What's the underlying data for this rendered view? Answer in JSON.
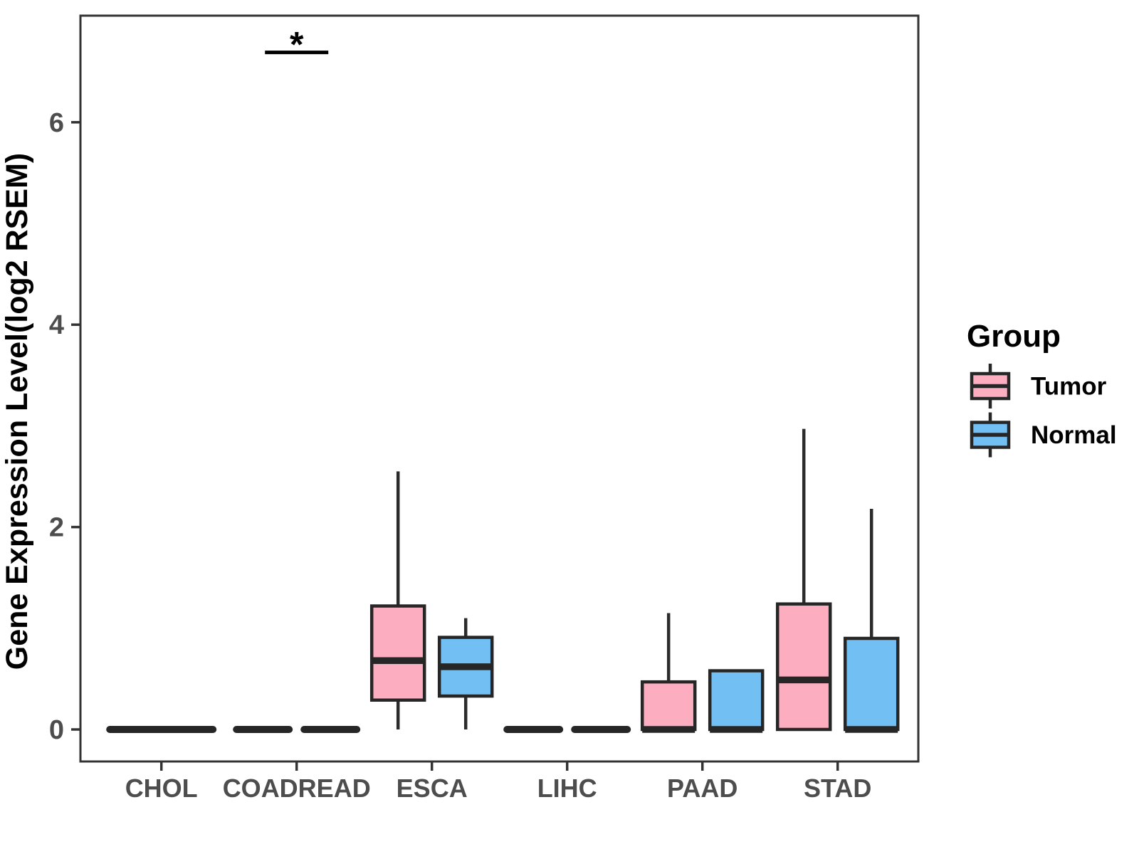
{
  "figure": {
    "background": "#FFFFFF"
  },
  "chart_data": {
    "type": "grouped_boxplot",
    "title": "",
    "xlabel": "",
    "ylabel": "Gene Expression Level(log2 RSEM)",
    "yticks": [
      0,
      2,
      4,
      6
    ],
    "ylim": [
      -0.32,
      7.05
    ],
    "grid": false,
    "categories": [
      "CHOL",
      "COADREAD",
      "ESCA",
      "LIHC",
      "PAAD",
      "STAD"
    ],
    "legend": {
      "title": "Group",
      "position": "right",
      "entries": [
        {
          "label": "Tumor",
          "color": "#FCADC0"
        },
        {
          "label": "Normal",
          "color": "#72BFF4"
        }
      ]
    },
    "series": [
      {
        "name": "Tumor",
        "color": "#FCADC0",
        "boxes": [
          {
            "category": "CHOL",
            "min": 0,
            "q1": 0,
            "median": 0,
            "q3": 0,
            "max": 0,
            "full_width": true
          },
          {
            "category": "COADREAD",
            "min": 0,
            "q1": 0,
            "median": 0,
            "q3": 0,
            "max": 0
          },
          {
            "category": "ESCA",
            "min": 0,
            "q1": 0.29,
            "median": 0.68,
            "q3": 1.22,
            "max": 2.55
          },
          {
            "category": "LIHC",
            "min": 0,
            "q1": 0,
            "median": 0,
            "q3": 0,
            "max": 0
          },
          {
            "category": "PAAD",
            "min": 0,
            "q1": 0,
            "median": 0,
            "q3": 0.47,
            "max": 1.15
          },
          {
            "category": "STAD",
            "min": 0,
            "q1": 0,
            "median": 0.49,
            "q3": 1.24,
            "max": 2.97
          }
        ]
      },
      {
        "name": "Normal",
        "color": "#72BFF4",
        "boxes": [
          {
            "category": "CHOL",
            "absent": true
          },
          {
            "category": "COADREAD",
            "min": 0,
            "q1": 0,
            "median": 0,
            "q3": 0,
            "max": 0
          },
          {
            "category": "ESCA",
            "min": 0,
            "q1": 0.33,
            "median": 0.62,
            "q3": 0.91,
            "max": 1.1
          },
          {
            "category": "LIHC",
            "min": 0,
            "q1": 0,
            "median": 0,
            "q3": 0,
            "max": 0
          },
          {
            "category": "PAAD",
            "min": 0,
            "q1": 0,
            "median": 0,
            "q3": 0.58,
            "max": 0.58
          },
          {
            "category": "STAD",
            "min": 0,
            "q1": 0,
            "median": 0,
            "q3": 0.9,
            "max": 2.18
          }
        ]
      }
    ],
    "annotations": [
      {
        "type": "significance",
        "category": "COADREAD",
        "label": "*",
        "y_value": 6.69
      }
    ],
    "styles": {
      "box_border_color": "#262626",
      "median_color": "#262626",
      "whisker_color": "#2B2B2B",
      "axis_color": "#333333",
      "tick_label_color": "#4D4D4D",
      "axis_title_color": "#000000",
      "legend_text_color": "#000000",
      "annotation_color": "#000000"
    }
  }
}
